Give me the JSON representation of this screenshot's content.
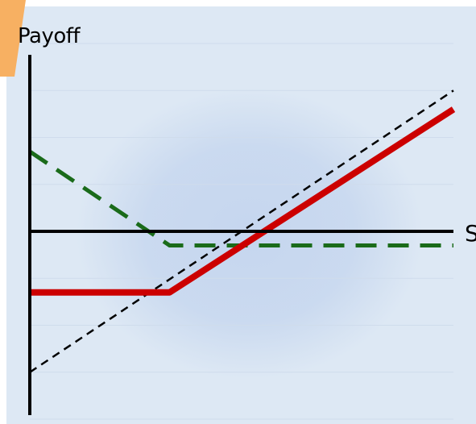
{
  "chart_data": {
    "type": "line",
    "title": "",
    "xlabel": "S",
    "ylabel": "Payoff",
    "xlim": [
      0,
      10
    ],
    "ylim": [
      -4,
      4
    ],
    "grid": true,
    "legend": "none",
    "series": [
      {
        "color": "#cc0000",
        "style": "solid",
        "x": [
          0,
          3.3,
          10
        ],
        "y": [
          -1.3,
          -1.3,
          2.6
        ]
      },
      {
        "color": "#1a6b1a",
        "style": "dashed",
        "x": [
          0,
          3.3,
          10
        ],
        "y": [
          1.7,
          -0.3,
          -0.3
        ]
      },
      {
        "color": "#000000",
        "style": "dashed",
        "x": [
          0,
          10
        ],
        "y": [
          -3.0,
          3.0
        ]
      }
    ]
  },
  "colors": {
    "panel_background": "#dde8f4",
    "panel_glow": "#c3d4ee",
    "accent_corner": "#f7b062",
    "axis": "#000000"
  }
}
